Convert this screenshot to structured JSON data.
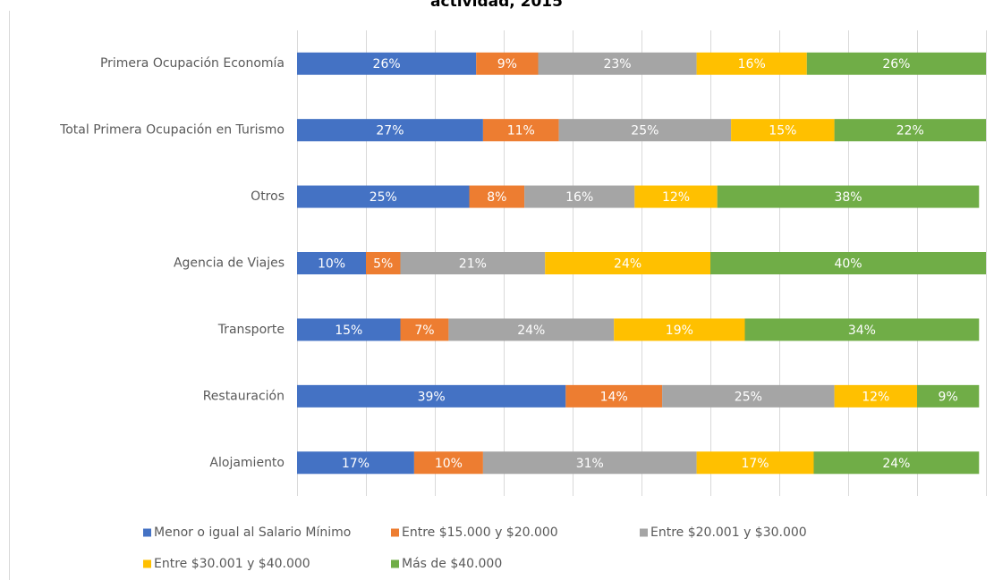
{
  "chart_data": {
    "type": "stacked_bar_horizontal",
    "title": "actividad, 2015",
    "categories": [
      "Primera Ocupación Economía",
      "Total Primera Ocupación en Turismo",
      "Otros",
      "Agencia de Viajes",
      "Transporte",
      "Restauración",
      "Alojamiento"
    ],
    "series": [
      {
        "name": "Menor o igual al Salario Mínimo",
        "color": "#4472c4",
        "values": [
          26,
          27,
          25,
          10,
          15,
          39,
          17
        ],
        "value_labels": [
          "26%",
          "27%",
          "25%",
          "10%",
          "15%",
          "39%",
          "17%"
        ]
      },
      {
        "name": "Entre $15.000 y $20.000",
        "color": "#ed7d31",
        "values": [
          9,
          11,
          8,
          5,
          7,
          14,
          10
        ],
        "value_labels": [
          "9%",
          "11%",
          "8%",
          "5%",
          "7%",
          "14%",
          "10%"
        ]
      },
      {
        "name": "Entre $20.001 y $30.000",
        "color": "#a5a5a5",
        "values": [
          23,
          25,
          16,
          21,
          24,
          25,
          31
        ],
        "value_labels": [
          "23%",
          "25%",
          "16%",
          "21%",
          "24%",
          "25%",
          "31%"
        ]
      },
      {
        "name": "Entre $30.001 y $40.000",
        "color": "#ffc000",
        "values": [
          16,
          15,
          12,
          24,
          19,
          12,
          17
        ],
        "value_labels": [
          "16%",
          "15%",
          "12%",
          "24%",
          "19%",
          "12%",
          "17%"
        ]
      },
      {
        "name": "Más de $40.000",
        "color": "#70ad47",
        "values": [
          26,
          22,
          38,
          40,
          34,
          9,
          24
        ],
        "value_labels": [
          "26%",
          "22%",
          "38%",
          "40%",
          "34%",
          "9%",
          "24%"
        ]
      }
    ],
    "xlim": [
      0,
      100
    ],
    "xticks": [
      0,
      10,
      20,
      30,
      40,
      50,
      60,
      70,
      80,
      90,
      100
    ],
    "grid": true,
    "legend": "bottom"
  }
}
